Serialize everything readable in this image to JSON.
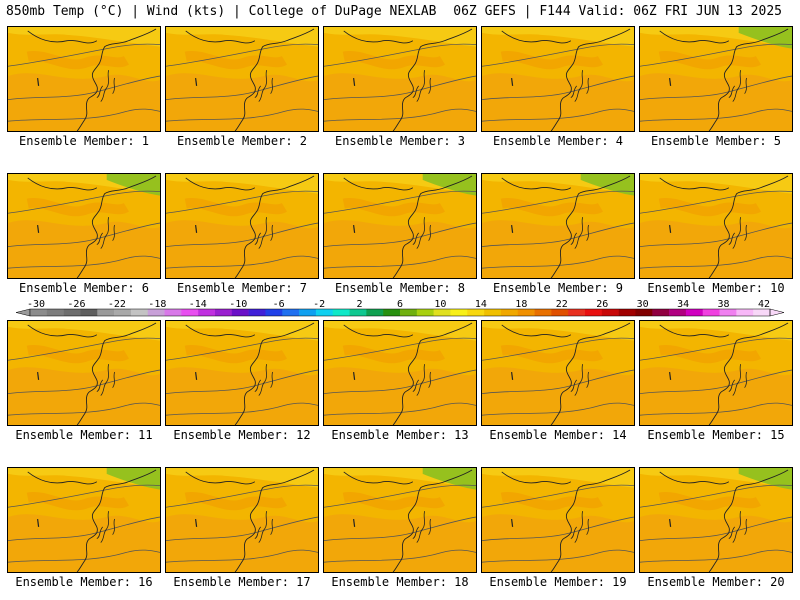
{
  "header": {
    "left": "850mb Temp (°C) | Wind (kts) | College of DuPage NEXLAB",
    "right": "06Z GEFS | F144 Valid: 06Z FRI JUN 13 2025"
  },
  "panels": [
    {
      "label": "Ensemble Member: 1"
    },
    {
      "label": "Ensemble Member: 2"
    },
    {
      "label": "Ensemble Member: 3"
    },
    {
      "label": "Ensemble Member: 4"
    },
    {
      "label": "Ensemble Member: 5"
    },
    {
      "label": "Ensemble Member: 6"
    },
    {
      "label": "Ensemble Member: 7"
    },
    {
      "label": "Ensemble Member: 8"
    },
    {
      "label": "Ensemble Member: 9"
    },
    {
      "label": "Ensemble Member: 10"
    },
    {
      "label": "Ensemble Member: 11"
    },
    {
      "label": "Ensemble Member: 12"
    },
    {
      "label": "Ensemble Member: 13"
    },
    {
      "label": "Ensemble Member: 14"
    },
    {
      "label": "Ensemble Member: 15"
    },
    {
      "label": "Ensemble Member: 16"
    },
    {
      "label": "Ensemble Member: 17"
    },
    {
      "label": "Ensemble Member: 18"
    },
    {
      "label": "Ensemble Member: 19"
    },
    {
      "label": "Ensemble Member: 20"
    }
  ],
  "colorbar": {
    "labels": [
      "-30",
      "-26",
      "-22",
      "-18",
      "-14",
      "-10",
      "-6",
      "-2",
      "2",
      "6",
      "10",
      "14",
      "18",
      "22",
      "26",
      "30",
      "34",
      "38",
      "42"
    ],
    "colors": [
      "#8c8c8c",
      "#7d7d7d",
      "#6e6e6e",
      "#5f5f5f",
      "#9a9a9a",
      "#a9a9a9",
      "#c3c3c3",
      "#c8a0d8",
      "#d878e8",
      "#e84ff0",
      "#c030e0",
      "#9a20d0",
      "#6a10c8",
      "#4020d8",
      "#2040e8",
      "#2070f0",
      "#10a0f0",
      "#10d0f0",
      "#10e8c8",
      "#10c890",
      "#10a050",
      "#289010",
      "#70b010",
      "#a8d010",
      "#e0e020",
      "#f8f018",
      "#f8d810",
      "#f0c000",
      "#f0a800",
      "#f09000",
      "#e87000",
      "#e05000",
      "#e83020",
      "#e81010",
      "#c80808",
      "#a00000",
      "#800000",
      "#900040",
      "#b00080",
      "#d000c0",
      "#f040e0",
      "#f080f0",
      "#f8b8f8",
      "#f8d8f8"
    ]
  }
}
